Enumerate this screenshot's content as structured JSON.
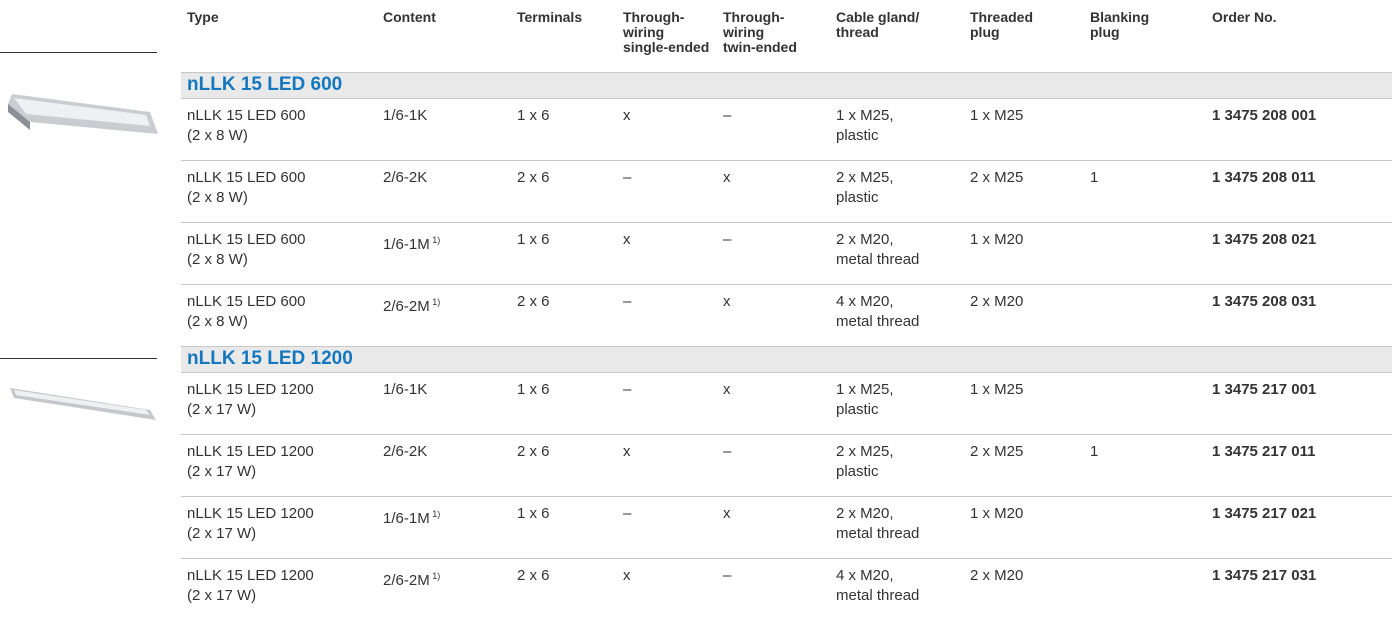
{
  "header": {
    "columns": [
      [
        "Type"
      ],
      [
        "Content"
      ],
      [
        "Terminals"
      ],
      [
        "Through-",
        "wiring",
        "single-ended"
      ],
      [
        "Through-",
        "wiring",
        "twin-ended"
      ],
      [
        "Cable gland/",
        "thread"
      ],
      [
        "Threaded",
        "plug"
      ],
      [
        "Blanking",
        "plug"
      ],
      [
        "Order No."
      ]
    ]
  },
  "groups": [
    {
      "title": "nLLK 15 LED 600",
      "rows": [
        [
          [
            "nLLK 15 LED 600",
            "(2 x 8 W)"
          ],
          "1/6-1K",
          "1 x 6",
          "x",
          "–",
          [
            "1 x M25,",
            "plastic"
          ],
          "1 x M25",
          "",
          "1 3475 208 001"
        ],
        [
          [
            "nLLK 15 LED 600",
            "(2 x 8 W)"
          ],
          "2/6-2K",
          "2 x 6",
          "–",
          "x",
          [
            "2 x M25,",
            "plastic"
          ],
          "2 x M25",
          "1",
          "1 3475 208 011"
        ],
        [
          [
            "nLLK 15 LED 600",
            "(2 x 8 W)"
          ],
          {
            "text": "1/6-1M",
            "note": "1)"
          },
          "1 x 6",
          "x",
          "–",
          [
            "2 x M20,",
            "metal thread"
          ],
          "1 x M20",
          "",
          "1 3475 208 021"
        ],
        [
          [
            "nLLK 15 LED 600",
            "(2 x 8 W)"
          ],
          {
            "text": "2/6-2M",
            "note": "1)"
          },
          "2 x 6",
          "–",
          "x",
          [
            "4 x M20,",
            "metal thread"
          ],
          "2 x M20",
          "",
          "1 3475 208 031"
        ]
      ]
    },
    {
      "title": "nLLK 15 LED 1200",
      "rows": [
        [
          [
            "nLLK 15 LED 1200",
            "(2 x 17 W)"
          ],
          "1/6-1K",
          "1 x 6",
          "–",
          "x",
          [
            "1 x M25,",
            "plastic"
          ],
          "1 x M25",
          "",
          "1 3475 217 001"
        ],
        [
          [
            "nLLK 15 LED 1200",
            "(2 x 17 W)"
          ],
          "2/6-2K",
          "2 x 6",
          "x",
          "–",
          [
            "2 x M25,",
            "plastic"
          ],
          "2 x M25",
          "1",
          "1 3475 217 011"
        ],
        [
          [
            "nLLK 15 LED 1200",
            "(2 x 17 W)"
          ],
          {
            "text": "1/6-1M",
            "note": "1)"
          },
          "1 x 6",
          "–",
          "x",
          [
            "2 x M20,",
            "metal thread"
          ],
          "1 x M20",
          "",
          "1 3475 217 021"
        ],
        [
          [
            "nLLK 15 LED 1200",
            "(2 x 17 W)"
          ],
          {
            "text": "2/6-2M",
            "note": "1)"
          },
          "2 x 6",
          "x",
          "–",
          [
            "4 x M20,",
            "metal thread"
          ],
          "2 x M20",
          "",
          "1 3475 217 031"
        ]
      ]
    }
  ]
}
